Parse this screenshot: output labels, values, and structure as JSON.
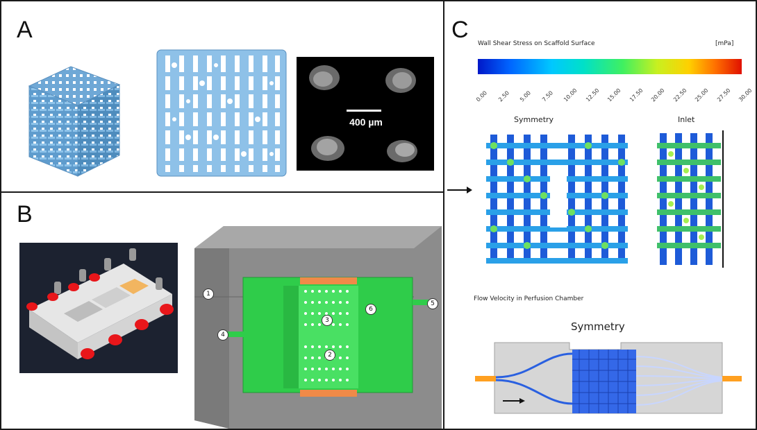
{
  "panel_a": {
    "label": "A",
    "scale_bar": "400 µm"
  },
  "panel_b": {
    "label": "B",
    "callouts": [
      "1",
      "2",
      "3",
      "4",
      "5",
      "6"
    ]
  },
  "panel_c": {
    "label": "C",
    "wss_title": "Wall Shear Stress on Scaffold Surface",
    "wss_unit": "[mPa]",
    "colorbar_ticks": [
      "0.00",
      "2.50",
      "5.00",
      "7.50",
      "10.00",
      "12.50",
      "15.00",
      "17.50",
      "20.00",
      "22.50",
      "25.00",
      "27.50",
      "30.00"
    ],
    "symmetry_label": "Symmetry",
    "inlet_label": "Inlet",
    "flow_title": "Flow Velocity in Perfusion Chamber",
    "flow_symmetry_label": "Symmetry"
  },
  "colors": {
    "scaffold_blue": "#7fb6e0",
    "chamber_green": "#3ee05a",
    "membrane_orange": "#f08a48",
    "housing_gray": "#8c8c8c",
    "connector_red": "#e8161a"
  }
}
